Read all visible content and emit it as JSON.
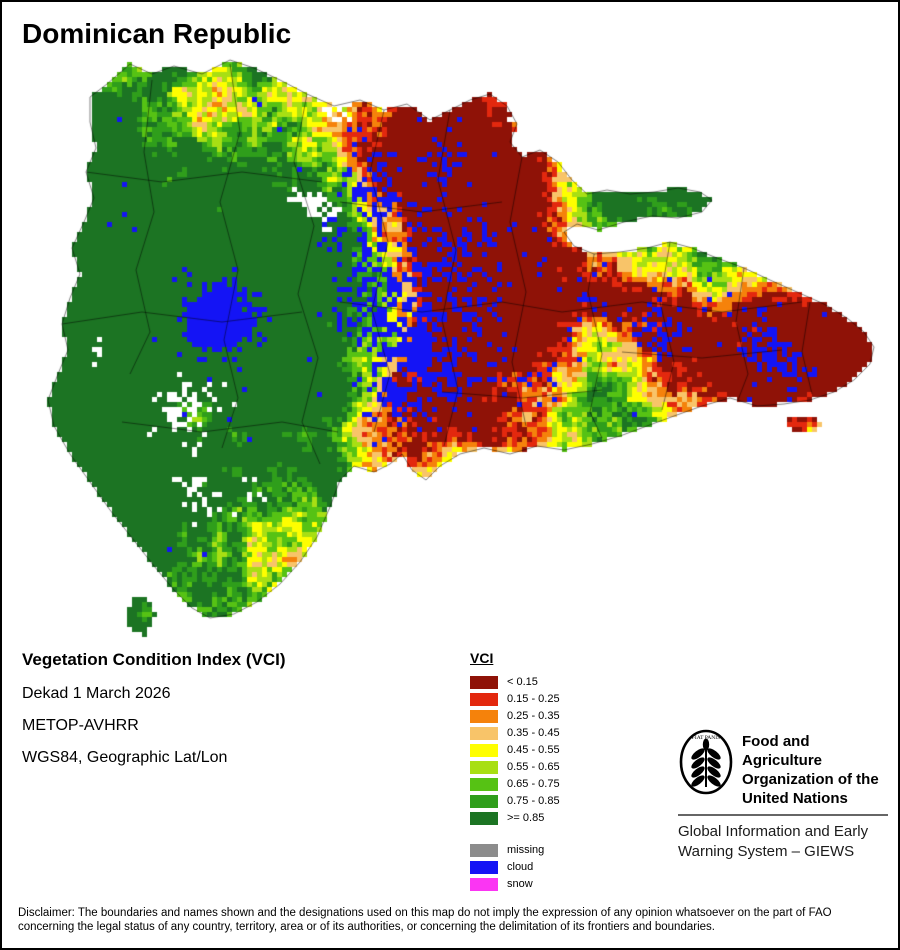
{
  "header": {
    "title": "Dominican Republic"
  },
  "info": {
    "product": "Vegetation Condition Index (VCI)",
    "dekad": "Dekad 1 March 2026",
    "sensor": "METOP-AVHRR",
    "projection": "WGS84, Geographic Lat/Lon"
  },
  "legend": {
    "title": "VCI",
    "classes": [
      {
        "label": "< 0.15",
        "color": "#8F1207"
      },
      {
        "label": "0.15 - 0.25",
        "color": "#E3280E"
      },
      {
        "label": "0.25 - 0.35",
        "color": "#F5820B"
      },
      {
        "label": "0.35 - 0.45",
        "color": "#F8C469"
      },
      {
        "label": "0.45 - 0.55",
        "color": "#FEFE00"
      },
      {
        "label": "0.55 - 0.65",
        "color": "#A8DF13"
      },
      {
        "label": "0.65 - 0.75",
        "color": "#56C214"
      },
      {
        "label": "0.75 - 0.85",
        "color": "#2F9E1B"
      },
      {
        "label": ">= 0.85",
        "color": "#1C7423"
      }
    ],
    "extras": [
      {
        "label": "missing",
        "color": "#8C8C8C"
      },
      {
        "label": "cloud",
        "color": "#1414F5"
      },
      {
        "label": "snow",
        "color": "#FB35F3"
      }
    ]
  },
  "map": {
    "country": "Dominican Republic",
    "sea_color": "#FFFFFF"
  },
  "footer": {
    "fao_name_lines": [
      "Food and Agriculture",
      "Organization of the",
      "United Nations"
    ],
    "fao_logo_motto": "FIAT PANIS",
    "giews_lines": [
      "Global Information and Early",
      "Warning System – GIEWS"
    ]
  },
  "disclaimer": "Disclaimer: The boundaries and names shown and the designations used on this map do not imply the expression of any opinion whatsoever on the part of FAO concerning the legal status of any country, territory, area or of its authorities, or concerning the delimitation of its frontiers and boundaries."
}
